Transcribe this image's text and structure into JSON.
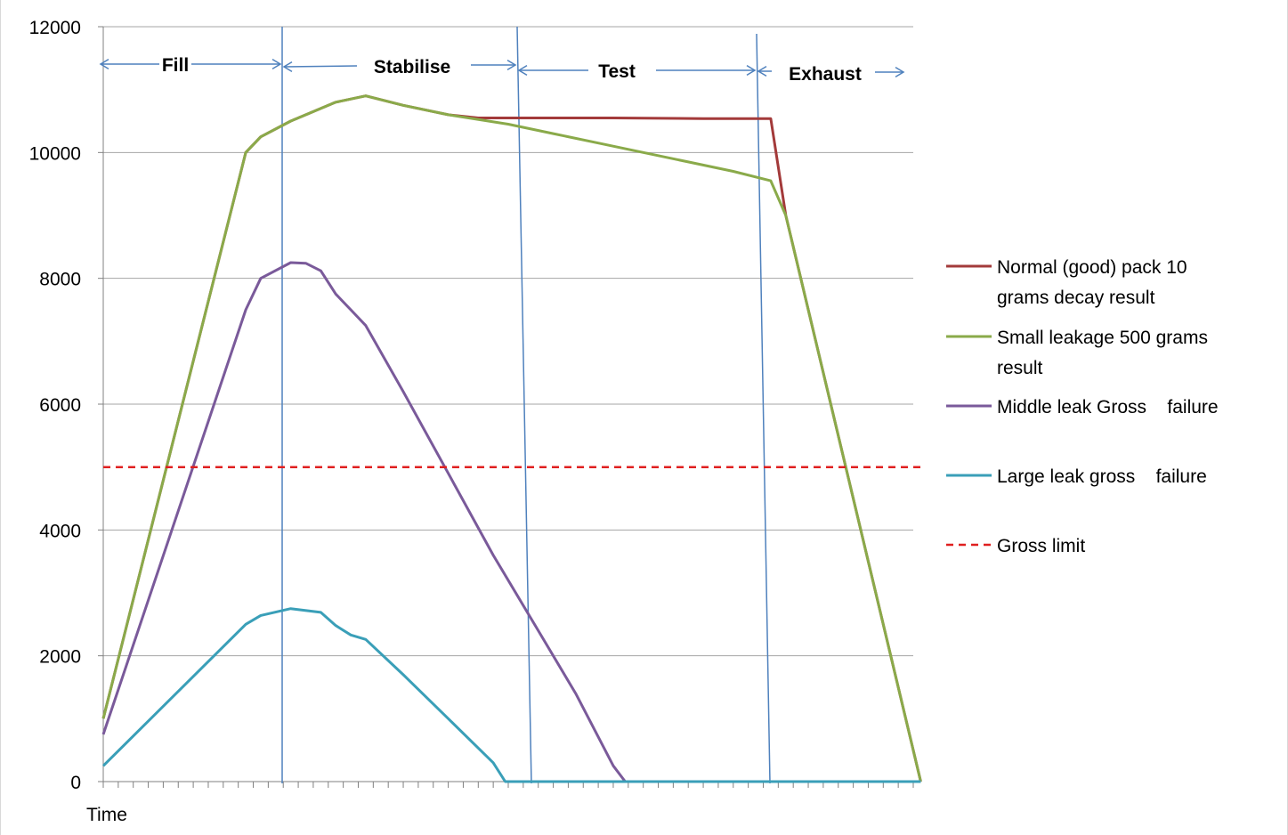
{
  "chart_data": {
    "type": "line",
    "xlabel": "Time",
    "ylabel": "",
    "ylim": [
      0,
      12000
    ],
    "yticks": [
      0,
      2000,
      4000,
      6000,
      8000,
      10000,
      12000
    ],
    "grid": true,
    "legend_position": "right",
    "x_points": 55,
    "phases": [
      "Fill",
      "Stabilise",
      "Test",
      "Exhaust"
    ],
    "series": [
      {
        "name": "Normal (good) pack 10 grams decay result",
        "color": "#a33a3a",
        "dash": false,
        "points": [
          [
            0,
            1000
          ],
          [
            9.5,
            10000
          ],
          [
            10.5,
            10250
          ],
          [
            12.5,
            10500
          ],
          [
            14,
            10650
          ],
          [
            15.5,
            10800
          ],
          [
            17.5,
            10900
          ],
          [
            20,
            10750
          ],
          [
            23,
            10600
          ],
          [
            25,
            10550
          ],
          [
            30,
            10550
          ],
          [
            34,
            10550
          ],
          [
            40,
            10540
          ],
          [
            44.5,
            10540
          ],
          [
            45.5,
            9000
          ],
          [
            54.5,
            0
          ]
        ]
      },
      {
        "name": "Small leakage 500 grams result",
        "color": "#8aaa4a",
        "dash": false,
        "points": [
          [
            0,
            1000
          ],
          [
            9.5,
            10000
          ],
          [
            10.5,
            10250
          ],
          [
            12.5,
            10500
          ],
          [
            14,
            10650
          ],
          [
            15.5,
            10800
          ],
          [
            17.5,
            10900
          ],
          [
            20,
            10750
          ],
          [
            23,
            10600
          ],
          [
            27,
            10450
          ],
          [
            30,
            10300
          ],
          [
            33,
            10150
          ],
          [
            36,
            10000
          ],
          [
            39,
            9850
          ],
          [
            42,
            9700
          ],
          [
            44.5,
            9550
          ],
          [
            45.5,
            9000
          ],
          [
            54.5,
            0
          ]
        ]
      },
      {
        "name": "Middle leak Gross    failure",
        "color": "#7a5a9a",
        "dash": false,
        "points": [
          [
            0,
            750
          ],
          [
            9.5,
            7500
          ],
          [
            10.5,
            8000
          ],
          [
            12.5,
            8250
          ],
          [
            13.5,
            8240
          ],
          [
            14.5,
            8120
          ],
          [
            15.5,
            7750
          ],
          [
            16.5,
            7500
          ],
          [
            17.5,
            7250
          ],
          [
            20,
            6200
          ],
          [
            23,
            4900
          ],
          [
            26,
            3600
          ],
          [
            29,
            2400
          ],
          [
            31.5,
            1400
          ],
          [
            34,
            250
          ],
          [
            34.8,
            0
          ],
          [
            54.5,
            0
          ]
        ]
      },
      {
        "name": "Large leak gross    failure",
        "color": "#3a9fb8",
        "dash": false,
        "points": [
          [
            0,
            250
          ],
          [
            9.5,
            2500
          ],
          [
            10.5,
            2640
          ],
          [
            12.5,
            2750
          ],
          [
            14.5,
            2690
          ],
          [
            15.5,
            2480
          ],
          [
            16.5,
            2330
          ],
          [
            17.5,
            2260
          ],
          [
            20,
            1700
          ],
          [
            23,
            1000
          ],
          [
            26,
            300
          ],
          [
            26.8,
            0
          ],
          [
            54.5,
            0
          ]
        ]
      },
      {
        "name": "Gross limit",
        "color": "#e02020",
        "dash": true,
        "points": [
          [
            0,
            5000
          ],
          [
            54.5,
            5000
          ]
        ]
      }
    ]
  }
}
